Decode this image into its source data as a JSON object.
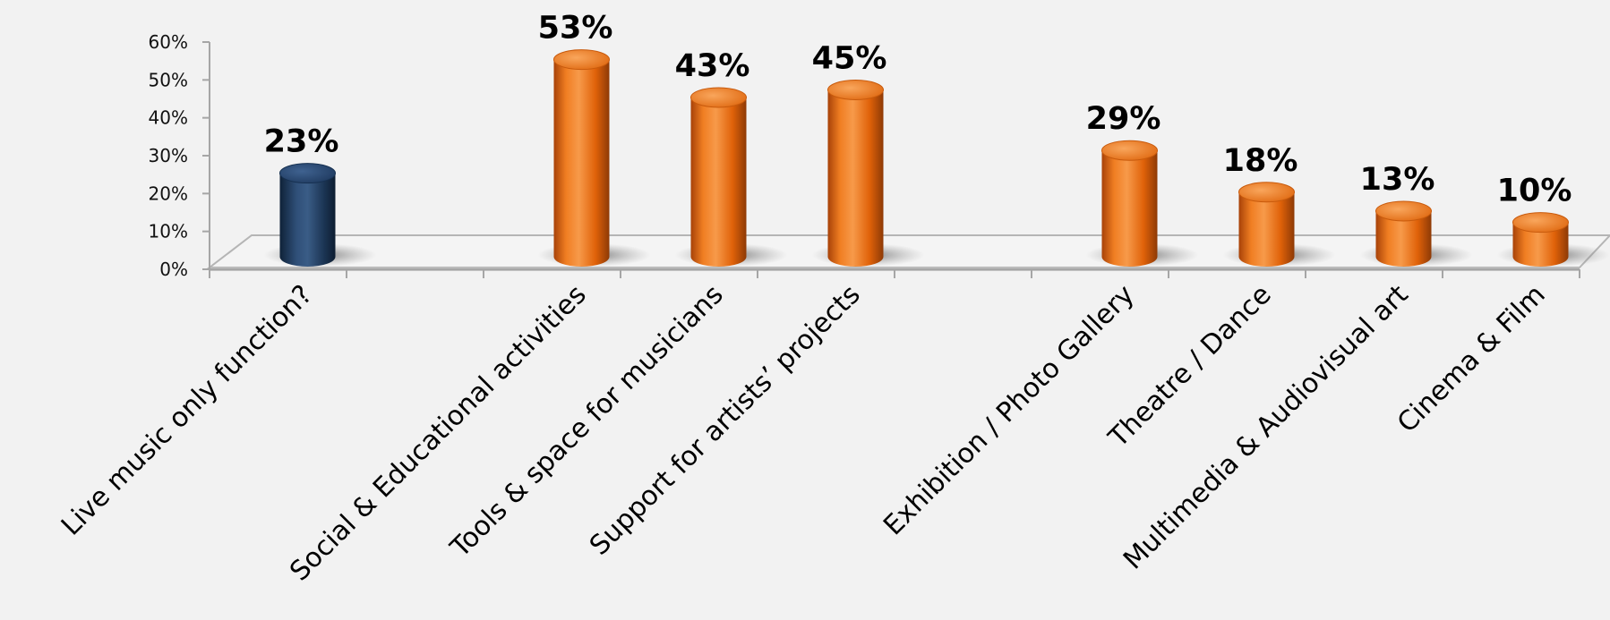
{
  "chart_data": {
    "type": "bar",
    "title": "",
    "xlabel": "",
    "ylabel": "",
    "ylim": [
      0,
      60
    ],
    "yticks": [
      "0%",
      "10%",
      "20%",
      "30%",
      "40%",
      "50%",
      "60%"
    ],
    "categories": [
      "Live music only function?",
      "",
      "Social & Educational activities",
      "Tools & space for musicians",
      "Support for artists’ projects",
      "",
      "Exhibition / Photo Gallery",
      "Theatre / Dance",
      "Multimedia & Audiovisual art",
      "Cinema & Film"
    ],
    "values": [
      23,
      null,
      53,
      43,
      45,
      null,
      29,
      18,
      13,
      10
    ],
    "data_labels": [
      "23%",
      "",
      "53%",
      "43%",
      "45%",
      "",
      "29%",
      "18%",
      "13%",
      "10%"
    ],
    "colors": [
      "#1f3a5f",
      "",
      "#e8650a",
      "#e8650a",
      "#e8650a",
      "",
      "#e8650a",
      "#e8650a",
      "#e8650a",
      "#e8650a"
    ],
    "grid": false,
    "legend": "none"
  }
}
